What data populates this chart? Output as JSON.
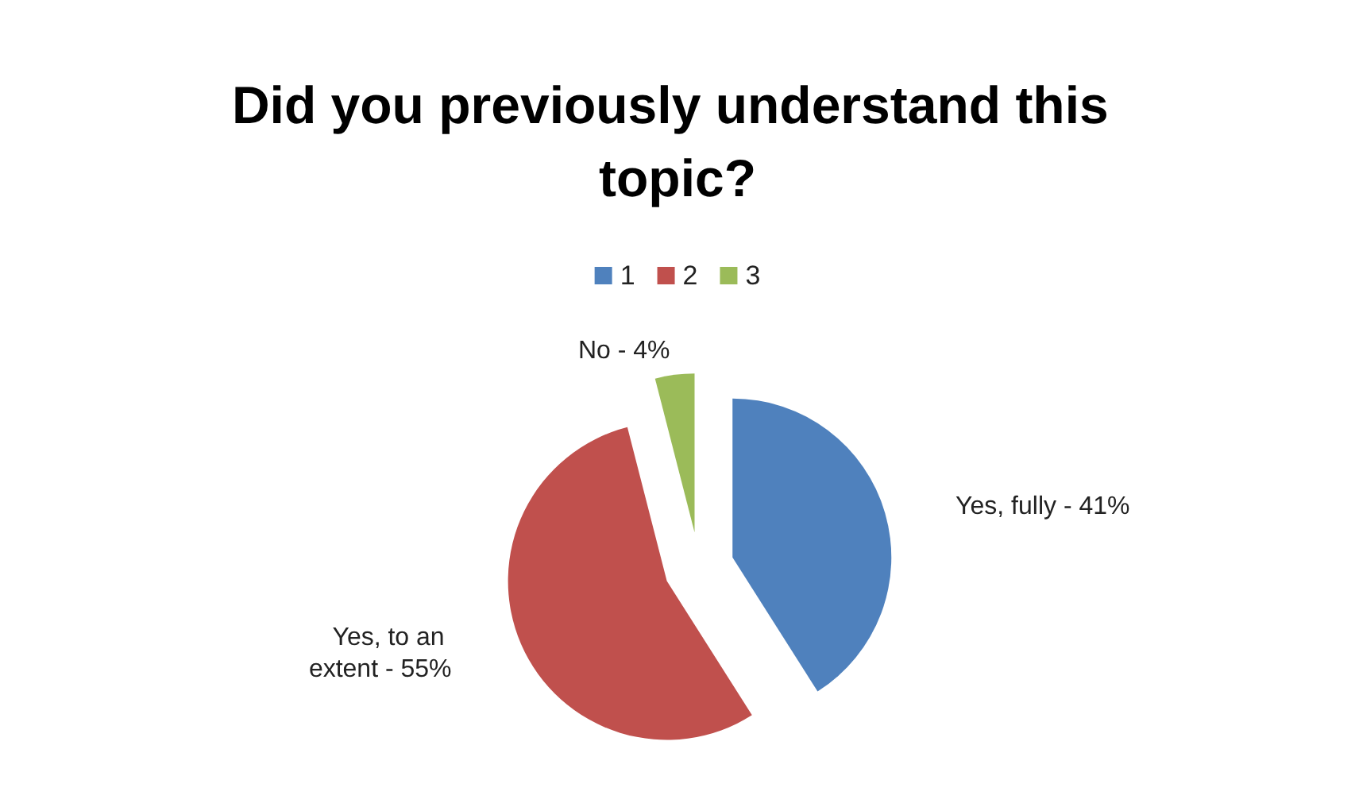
{
  "chart_data": {
    "type": "pie",
    "title": "Did you previously understand this topic?",
    "categories": [
      "1",
      "2",
      "3"
    ],
    "values": [
      41,
      55,
      4
    ],
    "annotations": [
      "Yes, fully -",
      "Yes, to an extent -",
      "No -"
    ],
    "value_labels": [
      "41%",
      "55%",
      "4%"
    ],
    "colors": [
      "#4f81bd",
      "#c0504d",
      "#9bbb59"
    ],
    "legend": "top"
  }
}
